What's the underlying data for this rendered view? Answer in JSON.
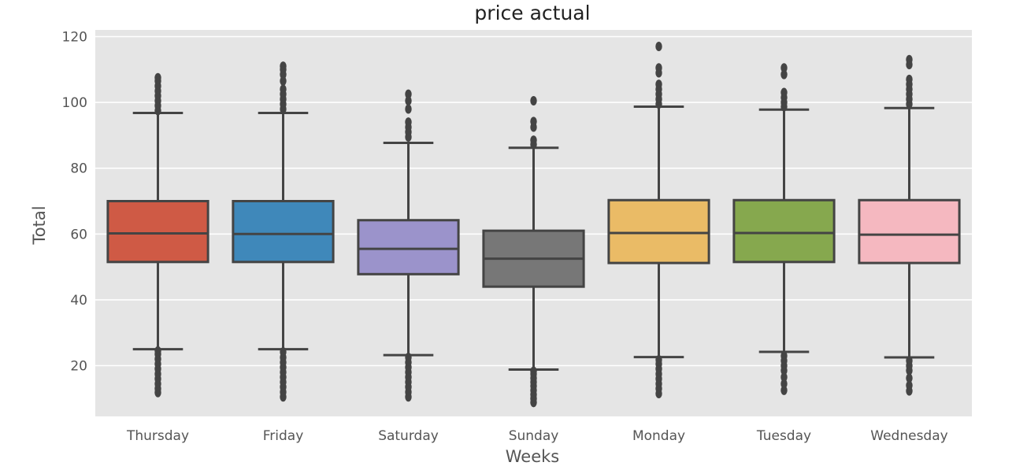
{
  "chart_data": {
    "type": "box",
    "title": "price actual",
    "xlabel": "Weeks",
    "ylabel": "Total",
    "ylim": [
      5,
      121
    ],
    "yticks": [
      20,
      40,
      60,
      80,
      100,
      120
    ],
    "grid": true,
    "background": "#e5e5e5",
    "categories": [
      "Thursday",
      "Friday",
      "Saturday",
      "Sunday",
      "Monday",
      "Tuesday",
      "Wednesday"
    ],
    "boxes": [
      {
        "category": "Thursday",
        "color": "#cf5a45",
        "whisker_low": 25,
        "q1": 51.5,
        "median": 60.2,
        "q3": 70,
        "whisker_high": 96.8,
        "fliers_low": [
          11.8,
          13,
          14.5,
          16,
          17.5,
          19,
          20.5,
          22,
          23.5,
          24.5
        ],
        "fliers_high": [
          97.5,
          99,
          100.5,
          102,
          103.5,
          105,
          106.5,
          107.5
        ]
      },
      {
        "category": "Friday",
        "color": "#3f88ba",
        "whisker_low": 25,
        "q1": 51.5,
        "median": 60,
        "q3": 70,
        "whisker_high": 96.8,
        "fliers_low": [
          10.5,
          12,
          13.5,
          15,
          16.5,
          18,
          19.5,
          21,
          22.5,
          24.2
        ],
        "fliers_high": [
          98,
          99.5,
          101,
          102.5,
          104,
          106.5,
          108.5,
          110,
          111
        ]
      },
      {
        "category": "Saturday",
        "color": "#9b93cb",
        "whisker_low": 23.2,
        "q1": 47.8,
        "median": 55.5,
        "q3": 64.2,
        "whisker_high": 87.7,
        "fliers_low": [
          10.5,
          12,
          13.5,
          15,
          16.5,
          18,
          19.5,
          21,
          22.5
        ],
        "fliers_high": [
          89.5,
          91,
          92.5,
          94,
          98,
          100.5,
          102.5
        ]
      },
      {
        "category": "Sunday",
        "color": "#777777",
        "whisker_low": 18.8,
        "q1": 44,
        "median": 52.5,
        "q3": 61,
        "whisker_high": 86.2,
        "fliers_low": [
          8.8,
          10,
          11.2,
          12.5,
          13.8,
          15,
          16.2,
          17.5,
          18.3
        ],
        "fliers_high": [
          87.2,
          88.5,
          92.5,
          94.2,
          100.5
        ]
      },
      {
        "category": "Monday",
        "color": "#eabb66",
        "whisker_low": 22.6,
        "q1": 51.2,
        "median": 60.3,
        "q3": 70.3,
        "whisker_high": 98.7,
        "fliers_low": [
          11.5,
          13,
          14.5,
          16,
          17.5,
          19,
          20.5,
          21.8
        ],
        "fliers_high": [
          99.5,
          101,
          102.5,
          104,
          105.5,
          109,
          110.5,
          117
        ]
      },
      {
        "category": "Tuesday",
        "color": "#86a84e",
        "whisker_low": 24.2,
        "q1": 51.5,
        "median": 60.3,
        "q3": 70.3,
        "whisker_high": 97.8,
        "fliers_low": [
          12.5,
          14.5,
          16.5,
          18.5,
          20,
          21.5,
          23
        ],
        "fliers_high": [
          98.7,
          100,
          101.5,
          103,
          108.5,
          110.5
        ]
      },
      {
        "category": "Wednesday",
        "color": "#f5b8c0",
        "whisker_low": 22.5,
        "q1": 51.2,
        "median": 59.8,
        "q3": 70.3,
        "whisker_high": 98.3,
        "fliers_low": [
          12.3,
          14,
          16.2,
          18.5,
          20,
          21.5
        ],
        "fliers_high": [
          99.5,
          101,
          102.5,
          104,
          105.5,
          107,
          111.5,
          113
        ]
      }
    ]
  }
}
